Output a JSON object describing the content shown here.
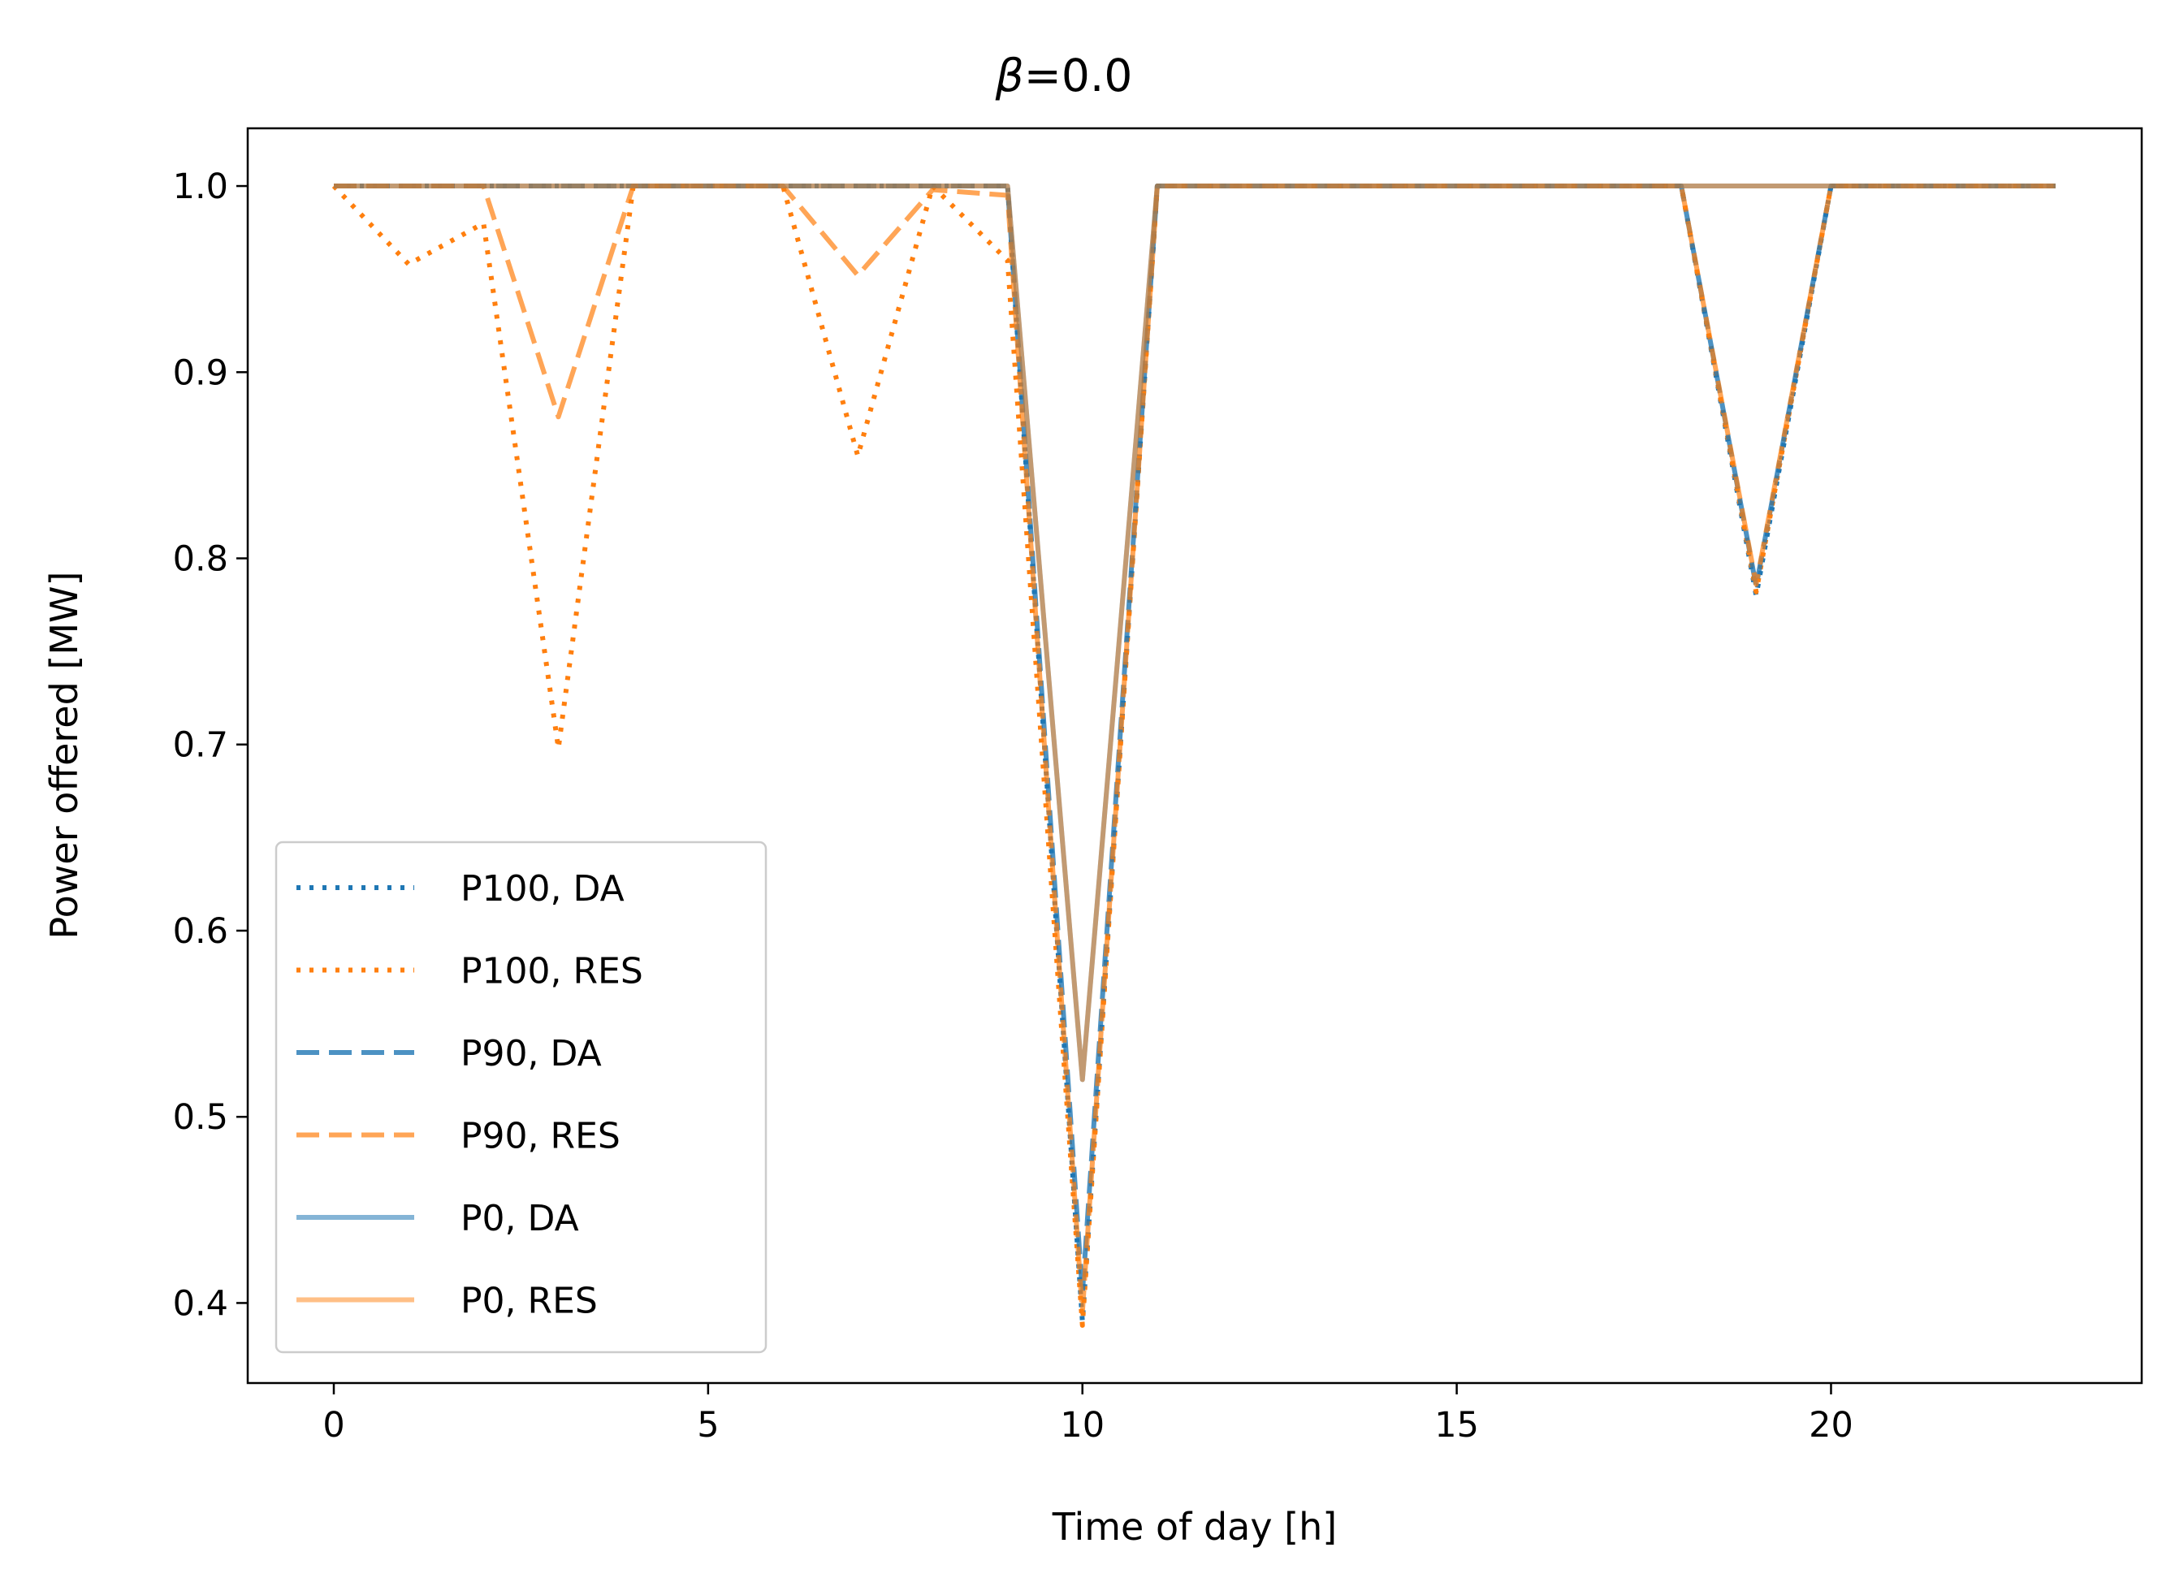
{
  "chart_data": {
    "type": "line",
    "title_symbol": "β",
    "title_value": "=0.0",
    "xlabel": "Time of day [h]",
    "ylabel": "Power offered [MW]",
    "xlim": [
      -1.15,
      24.15
    ],
    "ylim": [
      0.357,
      1.031
    ],
    "xticks": [
      0,
      5,
      10,
      15,
      20
    ],
    "xtick_labels": [
      "0",
      "5",
      "10",
      "15",
      "20"
    ],
    "yticks": [
      0.4,
      0.5,
      0.6,
      0.7,
      0.8,
      0.9,
      1.0
    ],
    "ytick_labels": [
      "0.4",
      "0.5",
      "0.6",
      "0.7",
      "0.8",
      "0.9",
      "1.0"
    ],
    "grid": false,
    "legend_position": "lower left",
    "x": [
      0,
      1,
      2,
      3,
      4,
      5,
      6,
      7,
      8,
      9,
      10,
      11,
      12,
      13,
      14,
      15,
      16,
      17,
      18,
      19,
      20,
      21,
      22,
      23
    ],
    "series": [
      {
        "name": "P100, DA",
        "color": "#1f77b4",
        "dash": "dotted",
        "opacity": 1.0,
        "values": [
          1,
          1,
          1,
          1,
          1,
          1,
          1,
          1,
          1,
          1,
          0.39,
          1,
          1,
          1,
          1,
          1,
          1,
          1,
          1,
          0.78,
          1,
          1,
          1,
          1
        ]
      },
      {
        "name": "P100, RES",
        "color": "#ff7f0e",
        "dash": "dotted",
        "opacity": 1.0,
        "values": [
          1,
          0.958,
          0.98,
          0.698,
          1,
          1,
          1,
          0.855,
          1,
          0.96,
          0.388,
          1,
          1,
          1,
          1,
          1,
          1,
          1,
          1,
          0.782,
          1,
          1,
          1,
          1
        ]
      },
      {
        "name": "P90, DA",
        "color": "#1f77b4",
        "dash": "dashed",
        "opacity": 0.8,
        "values": [
          1,
          1,
          1,
          1,
          1,
          1,
          1,
          1,
          1,
          1,
          0.405,
          1,
          1,
          1,
          1,
          1,
          1,
          1,
          1,
          0.785,
          1,
          1,
          1,
          1
        ]
      },
      {
        "name": "P90, RES",
        "color": "#ff7f0e",
        "dash": "dashed",
        "opacity": 0.7,
        "values": [
          1,
          1,
          1,
          0.876,
          1,
          1,
          1,
          0.952,
          0.998,
          0.995,
          0.395,
          1,
          1,
          1,
          1,
          1,
          1,
          1,
          1,
          0.786,
          1,
          1,
          1,
          1
        ]
      },
      {
        "name": "P0, DA",
        "color": "#1f77b4",
        "dash": "solid",
        "opacity": 0.55,
        "values": [
          1,
          1,
          1,
          1,
          1,
          1,
          1,
          1,
          1,
          1,
          0.52,
          1,
          1,
          1,
          1,
          1,
          1,
          1,
          1,
          1,
          1,
          1,
          1,
          1
        ]
      },
      {
        "name": "P0, RES",
        "color": "#ff7f0e",
        "dash": "solid",
        "opacity": 0.5,
        "values": [
          1,
          1,
          1,
          1,
          1,
          1,
          1,
          1,
          1,
          1,
          0.52,
          1,
          1,
          1,
          1,
          1,
          1,
          1,
          1,
          1,
          1,
          1,
          1,
          1
        ]
      }
    ]
  }
}
